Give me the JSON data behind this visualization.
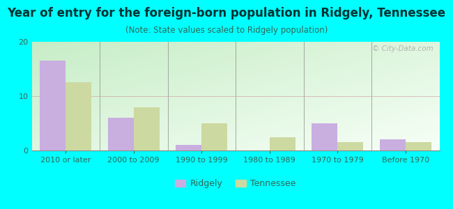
{
  "title": "Year of entry for the foreign-born population in Ridgely, Tennessee",
  "subtitle": "(Note: State values scaled to Ridgely population)",
  "categories": [
    "2010 or later",
    "2000 to 2009",
    "1990 to 1999",
    "1980 to 1989",
    "1970 to 1979",
    "Before 1970"
  ],
  "ridgely_values": [
    16.5,
    6.0,
    1.0,
    0.0,
    5.0,
    2.0
  ],
  "tennessee_values": [
    12.5,
    8.0,
    5.0,
    2.5,
    1.5,
    1.5
  ],
  "ridgely_color": "#c9aee0",
  "tennessee_color": "#ccd9a0",
  "figure_bg": "#00ffff",
  "plot_bg_topleft": "#c8e8c8",
  "plot_bg_bottomright": "#f8fff8",
  "ylim": [
    0,
    20
  ],
  "yticks": [
    0,
    10,
    20
  ],
  "bar_width": 0.38,
  "title_fontsize": 12,
  "subtitle_fontsize": 8.5,
  "tick_fontsize": 8,
  "legend_fontsize": 9,
  "axis_label_color": "#336655",
  "watermark_text": "© City-Data.com",
  "watermark_color": "#aaaaaa"
}
